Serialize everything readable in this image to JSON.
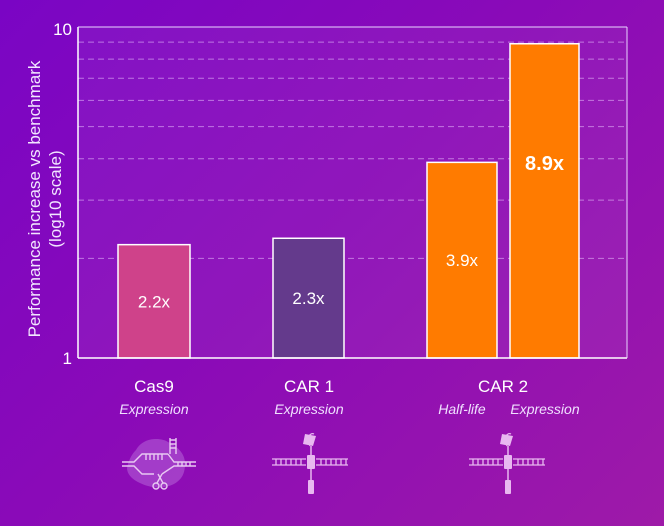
{
  "chart_data": {
    "type": "bar",
    "yscale": "log10",
    "ylim": [
      1,
      10
    ],
    "ylabel_line1": "Performance increase vs benchmark",
    "ylabel_line2": "(log10 scale)",
    "yticks": [
      "1",
      "10"
    ],
    "minor_grid": [
      2,
      3,
      4,
      5,
      6,
      7,
      8,
      9
    ],
    "grid": "dashed",
    "bars": [
      {
        "group": "Cas9",
        "metric": "Expression",
        "value": 2.2,
        "label": "2.2x",
        "color": "#cf428a"
      },
      {
        "group": "CAR 1",
        "metric": "Expression",
        "value": 2.3,
        "label": "2.3x",
        "color": "#643a8c"
      },
      {
        "group": "CAR 2",
        "metric": "Half-life",
        "value": 3.9,
        "label": "3.9x",
        "color": "#ff7b00"
      },
      {
        "group": "CAR 2",
        "metric": "Expression",
        "value": 8.9,
        "label": "8.9x",
        "color": "#ff7b00"
      }
    ],
    "categories": [
      "Cas9",
      "CAR 1",
      "CAR 2"
    ],
    "subcategories": [
      "Expression",
      "Expression",
      "Half-life",
      "Expression"
    ]
  },
  "icons": [
    "crispr-cas9-icon",
    "car-receptor-icon",
    "car-receptor-icon"
  ]
}
